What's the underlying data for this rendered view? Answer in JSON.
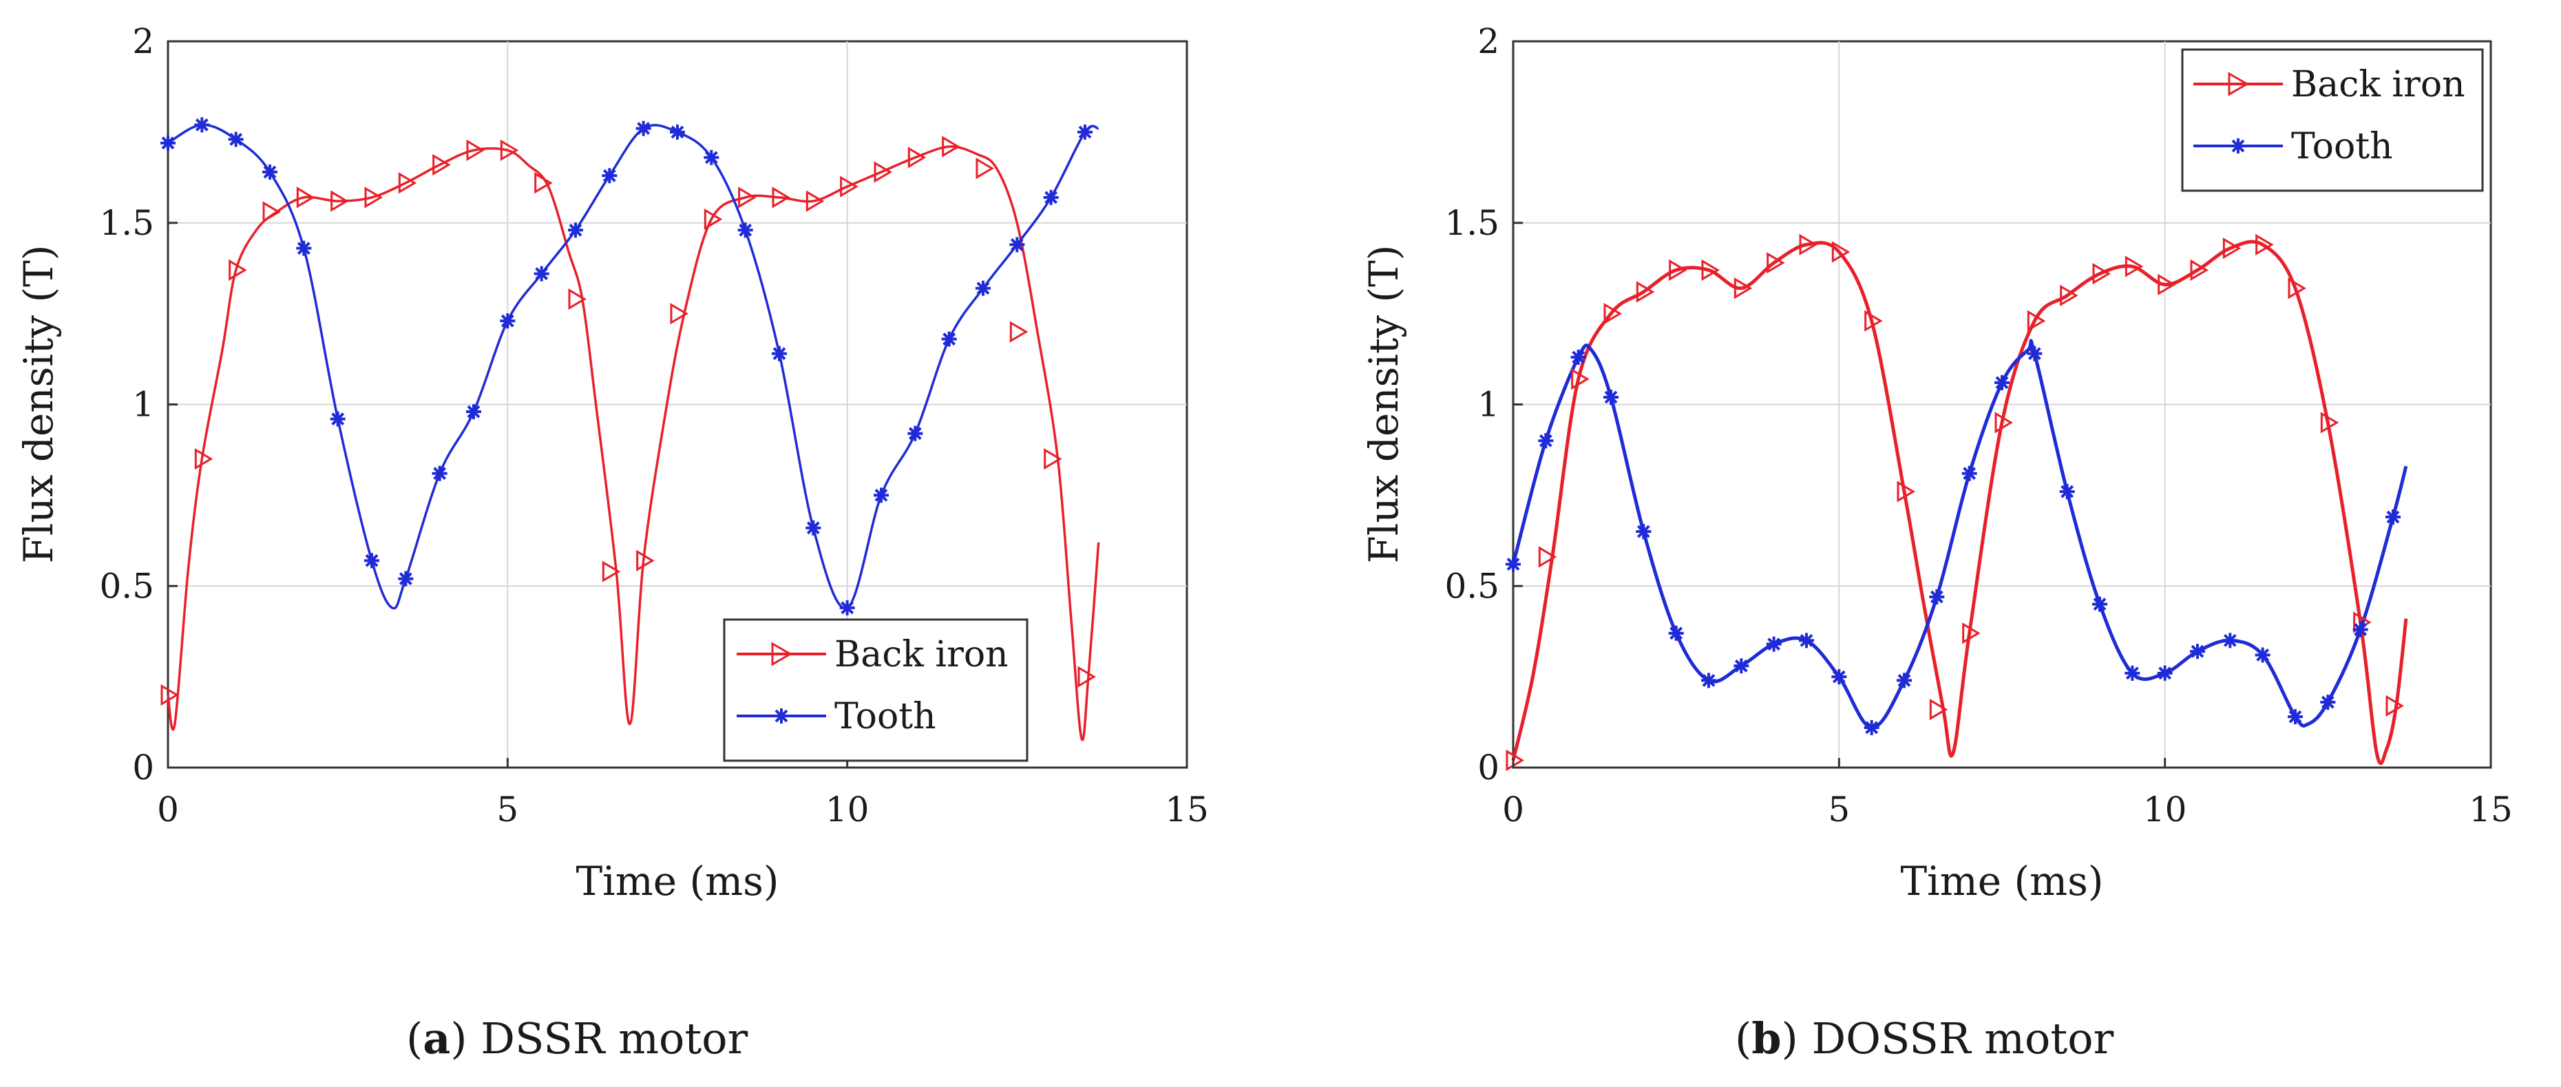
{
  "chart_data": [
    {
      "type": "line",
      "caption_letter": "a",
      "caption_text": "DSSR motor",
      "xlabel": "Time (ms)",
      "ylabel": "Flux density (T)",
      "xlim": [
        0,
        15
      ],
      "ylim": [
        0,
        2
      ],
      "xticks": [
        "0",
        "5",
        "10",
        "15"
      ],
      "yticks": [
        "0",
        "0.5",
        "1",
        "1.5",
        "2"
      ],
      "grid": true,
      "legend_position": "bottom-right",
      "series": [
        {
          "name": "Back iron",
          "color": "#e8202a",
          "marker": "triangle-right",
          "x": [
            0,
            0.1,
            0.3,
            0.5,
            0.8,
            1.0,
            1.3,
            1.6,
            2.0,
            2.5,
            3.0,
            3.5,
            4.0,
            4.5,
            5.0,
            5.3,
            5.6,
            5.9,
            6.1,
            6.3,
            6.6,
            6.8,
            7.0,
            7.3,
            7.6,
            8.0,
            8.5,
            9.0,
            9.5,
            10.0,
            10.5,
            11.0,
            11.5,
            11.9,
            12.2,
            12.5,
            12.8,
            13.1,
            13.3,
            13.45,
            13.55,
            13.7
          ],
          "y": [
            0.2,
            0.12,
            0.55,
            0.85,
            1.15,
            1.37,
            1.48,
            1.53,
            1.57,
            1.56,
            1.57,
            1.61,
            1.66,
            1.7,
            1.7,
            1.66,
            1.6,
            1.42,
            1.29,
            1.0,
            0.54,
            0.12,
            0.57,
            0.95,
            1.25,
            1.51,
            1.57,
            1.57,
            1.56,
            1.6,
            1.64,
            1.68,
            1.71,
            1.69,
            1.65,
            1.5,
            1.2,
            0.85,
            0.4,
            0.08,
            0.25,
            0.62
          ],
          "markers_x": [
            0,
            0.5,
            1.0,
            1.5,
            2.0,
            2.5,
            3.0,
            3.5,
            4.0,
            4.5,
            5.0,
            5.5,
            6.0,
            6.5,
            7.0,
            7.5,
            8.0,
            8.5,
            9.0,
            9.5,
            10.0,
            10.5,
            11.0,
            11.5,
            12.0,
            12.5,
            13.0,
            13.5
          ],
          "markers_y": [
            0.2,
            0.85,
            1.37,
            1.53,
            1.57,
            1.56,
            1.57,
            1.61,
            1.66,
            1.7,
            1.7,
            1.61,
            1.29,
            0.54,
            0.57,
            1.25,
            1.51,
            1.57,
            1.57,
            1.56,
            1.6,
            1.64,
            1.68,
            1.71,
            1.65,
            1.2,
            0.85,
            0.25
          ]
        },
        {
          "name": "Tooth",
          "color": "#1f2bd6",
          "marker": "asterisk",
          "x": [
            0,
            0.5,
            1.0,
            1.5,
            2.0,
            2.5,
            3.0,
            3.3,
            3.5,
            4.0,
            4.5,
            5.0,
            5.5,
            6.0,
            6.5,
            7.0,
            7.5,
            8.0,
            8.5,
            9.0,
            9.5,
            10.0,
            10.5,
            11.0,
            11.5,
            12.0,
            12.5,
            13.0,
            13.5,
            13.7
          ],
          "y": [
            1.72,
            1.77,
            1.73,
            1.64,
            1.43,
            0.96,
            0.57,
            0.44,
            0.52,
            0.81,
            0.98,
            1.23,
            1.36,
            1.48,
            1.63,
            1.76,
            1.75,
            1.68,
            1.48,
            1.14,
            0.66,
            0.44,
            0.75,
            0.92,
            1.18,
            1.32,
            1.44,
            1.57,
            1.75,
            1.76
          ],
          "markers_x": [
            0,
            0.5,
            1.0,
            1.5,
            2.0,
            2.5,
            3.0,
            3.5,
            4.0,
            4.5,
            5.0,
            5.5,
            6.0,
            6.5,
            7.0,
            7.5,
            8.0,
            8.5,
            9.0,
            9.5,
            10.0,
            10.5,
            11.0,
            11.5,
            12.0,
            12.5,
            13.0,
            13.5
          ],
          "markers_y": [
            1.72,
            1.77,
            1.73,
            1.64,
            1.43,
            0.96,
            0.57,
            0.52,
            0.81,
            0.98,
            1.23,
            1.36,
            1.48,
            1.63,
            1.76,
            1.75,
            1.68,
            1.48,
            1.14,
            0.66,
            0.44,
            0.75,
            0.92,
            1.18,
            1.32,
            1.44,
            1.57,
            1.75
          ]
        }
      ]
    },
    {
      "type": "line",
      "caption_letter": "b",
      "caption_text": "DOSSR motor",
      "xlabel": "Time (ms)",
      "ylabel": "Flux density (T)",
      "xlim": [
        0,
        15
      ],
      "ylim": [
        0,
        2
      ],
      "xticks": [
        "0",
        "5",
        "10",
        "15"
      ],
      "yticks": [
        "0",
        "0.5",
        "1",
        "1.5",
        "2"
      ],
      "grid": true,
      "legend_position": "top-right",
      "series": [
        {
          "name": "Back iron",
          "color": "#e8202a",
          "marker": "triangle-right",
          "x": [
            0,
            0.3,
            0.6,
            1.0,
            1.5,
            2.0,
            2.5,
            3.0,
            3.5,
            4.0,
            4.5,
            5.0,
            5.5,
            6.0,
            6.3,
            6.6,
            6.75,
            7.0,
            7.5,
            8.0,
            8.5,
            9.0,
            9.5,
            10.0,
            10.5,
            11.0,
            11.5,
            12.0,
            12.5,
            13.0,
            13.25,
            13.4,
            13.55,
            13.7
          ],
          "y": [
            0.02,
            0.25,
            0.58,
            1.07,
            1.25,
            1.31,
            1.37,
            1.37,
            1.32,
            1.39,
            1.44,
            1.42,
            1.23,
            0.76,
            0.45,
            0.16,
            0.04,
            0.37,
            0.95,
            1.23,
            1.3,
            1.36,
            1.38,
            1.33,
            1.37,
            1.43,
            1.44,
            1.32,
            0.95,
            0.4,
            0.04,
            0.05,
            0.17,
            0.41
          ],
          "markers_x": [
            0,
            0.5,
            1.0,
            1.5,
            2.0,
            2.5,
            3.0,
            3.5,
            4.0,
            4.5,
            5.0,
            5.5,
            6.0,
            6.5,
            7.0,
            7.5,
            8.0,
            8.5,
            9.0,
            9.5,
            10.0,
            10.5,
            11.0,
            11.5,
            12.0,
            12.5,
            13.0,
            13.5
          ],
          "markers_y": [
            0.02,
            0.58,
            1.07,
            1.25,
            1.31,
            1.37,
            1.37,
            1.32,
            1.39,
            1.44,
            1.42,
            1.23,
            0.76,
            0.16,
            0.37,
            0.95,
            1.23,
            1.3,
            1.36,
            1.38,
            1.33,
            1.37,
            1.43,
            1.44,
            1.32,
            0.95,
            0.4,
            0.17
          ]
        },
        {
          "name": "Tooth",
          "color": "#1f2bd6",
          "marker": "asterisk",
          "x": [
            0,
            0.5,
            1.0,
            1.2,
            1.5,
            2.0,
            2.5,
            3.0,
            3.5,
            4.0,
            4.5,
            5.0,
            5.5,
            6.0,
            6.5,
            7.0,
            7.5,
            7.9,
            8.0,
            8.5,
            9.0,
            9.5,
            10.0,
            10.5,
            11.0,
            11.5,
            12.0,
            12.2,
            12.5,
            13.0,
            13.5,
            13.7
          ],
          "y": [
            0.56,
            0.9,
            1.13,
            1.15,
            1.02,
            0.65,
            0.37,
            0.24,
            0.28,
            0.34,
            0.35,
            0.25,
            0.11,
            0.24,
            0.47,
            0.81,
            1.06,
            1.15,
            1.14,
            0.76,
            0.45,
            0.26,
            0.26,
            0.32,
            0.35,
            0.31,
            0.14,
            0.12,
            0.18,
            0.38,
            0.69,
            0.83
          ],
          "markers_x": [
            0,
            0.5,
            1.0,
            1.5,
            2.0,
            2.5,
            3.0,
            3.5,
            4.0,
            4.5,
            5.0,
            5.5,
            6.0,
            6.5,
            7.0,
            7.5,
            8.0,
            8.5,
            9.0,
            9.5,
            10.0,
            10.5,
            11.0,
            11.5,
            12.0,
            12.5,
            13.0,
            13.5
          ],
          "markers_y": [
            0.56,
            0.9,
            1.13,
            1.02,
            0.65,
            0.37,
            0.24,
            0.28,
            0.34,
            0.35,
            0.25,
            0.11,
            0.24,
            0.47,
            0.81,
            1.06,
            1.14,
            0.76,
            0.45,
            0.26,
            0.26,
            0.32,
            0.35,
            0.31,
            0.14,
            0.18,
            0.38,
            0.69
          ]
        }
      ]
    }
  ]
}
